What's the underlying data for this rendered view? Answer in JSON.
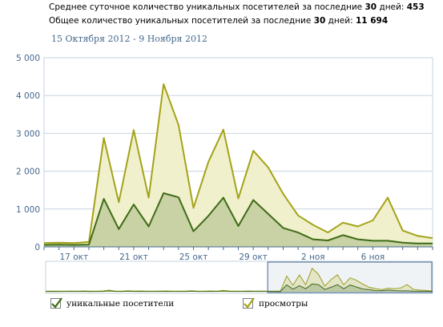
{
  "summary": {
    "avg_label": "Среднее суточное количество уникальных посетителей за последние",
    "avg_days": "30",
    "avg_suffix": "дней:",
    "avg_value": "453",
    "total_label": "Общее количество уникальных посетителей за последние",
    "total_days": "30",
    "total_suffix": "дней:",
    "total_value": "11 694"
  },
  "date_range": "15 Октября 2012 - 9 Ноября 2012",
  "colors": {
    "unique": "#3e6b18",
    "unique_fill": "#c8d2a4",
    "views": "#a3a319",
    "views_fill": "#f1f0cc",
    "axis": "#45688e",
    "grid": "#c6d3df",
    "checkbox": "#3e6b18"
  },
  "legend": [
    {
      "label": "уникальные посетители",
      "color": "#3e6b18"
    },
    {
      "label": "просмотры",
      "color": "#a3a319"
    }
  ],
  "chart_data": {
    "type": "area",
    "x_start_label": "15 окт",
    "y_ticks": [
      "0",
      "1 000",
      "2 000",
      "3 000",
      "4 000",
      "5 000"
    ],
    "ylim": [
      0,
      5000
    ],
    "x_tick_labels": [
      "17 окт",
      "21 окт",
      "25 окт",
      "29 окт",
      "2 ноя",
      "6 ноя"
    ],
    "x_tick_index": [
      2,
      6,
      10,
      14,
      18,
      22
    ],
    "series": [
      {
        "name": "просмотры",
        "values": [
          100,
          110,
          100,
          130,
          2880,
          1180,
          3090,
          1300,
          4300,
          3220,
          1030,
          2250,
          3100,
          1280,
          2540,
          2100,
          1400,
          830,
          580,
          380,
          640,
          540,
          700,
          1300,
          430,
          290,
          230
        ]
      },
      {
        "name": "уникальные посетители",
        "values": [
          50,
          60,
          50,
          60,
          1270,
          470,
          1120,
          540,
          1420,
          1310,
          410,
          820,
          1300,
          550,
          1240,
          870,
          500,
          380,
          200,
          170,
          310,
          200,
          160,
          160,
          110,
          90,
          90
        ]
      }
    ],
    "navigator": {
      "views": [
        100,
        110,
        100,
        120,
        130,
        110,
        140,
        100,
        120,
        130,
        300,
        120,
        110,
        180,
        130,
        150,
        110,
        120,
        130,
        140,
        110,
        120,
        130,
        170,
        120,
        110,
        150,
        120,
        250,
        130,
        110,
        120,
        140,
        110,
        130,
        120,
        110,
        100,
        2880,
        1180,
        3090,
        1300,
        4300,
        3220,
        1030,
        2250,
        3100,
        1280,
        2540,
        2100,
        1400,
        830,
        580,
        380,
        640,
        540,
        700,
        1300,
        430,
        290,
        230,
        120
      ],
      "unique": [
        50,
        60,
        50,
        55,
        60,
        55,
        70,
        50,
        60,
        65,
        150,
        60,
        55,
        90,
        65,
        75,
        55,
        60,
        65,
        70,
        55,
        60,
        65,
        85,
        60,
        55,
        75,
        60,
        120,
        65,
        55,
        60,
        70,
        55,
        65,
        60,
        55,
        50,
        1270,
        470,
        1120,
        540,
        1420,
        1310,
        410,
        820,
        1300,
        550,
        1240,
        870,
        500,
        380,
        200,
        170,
        310,
        200,
        160,
        160,
        110,
        90,
        90,
        60
      ],
      "window_start_index": 35
    }
  }
}
